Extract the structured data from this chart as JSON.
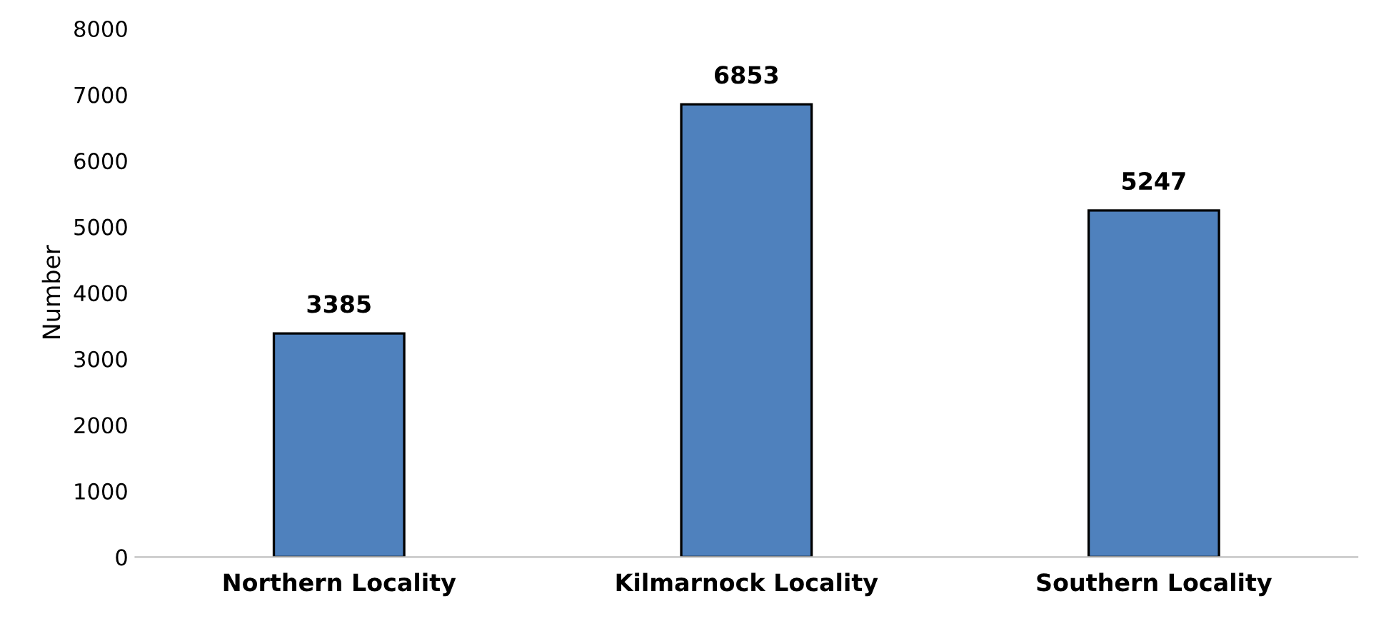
{
  "chart_data": {
    "type": "bar",
    "ylabel": "Number",
    "categories": [
      "Northern Locality",
      "Kilmarnock Locality",
      "Southern Locality"
    ],
    "values": [
      3385,
      6853,
      5247
    ],
    "color": "#4f81bd",
    "ylim": [
      0,
      8000
    ],
    "yticks": [
      0,
      1000,
      2000,
      3000,
      4000,
      5000,
      6000,
      7000,
      8000
    ],
    "grid": false,
    "data_labels": true
  }
}
